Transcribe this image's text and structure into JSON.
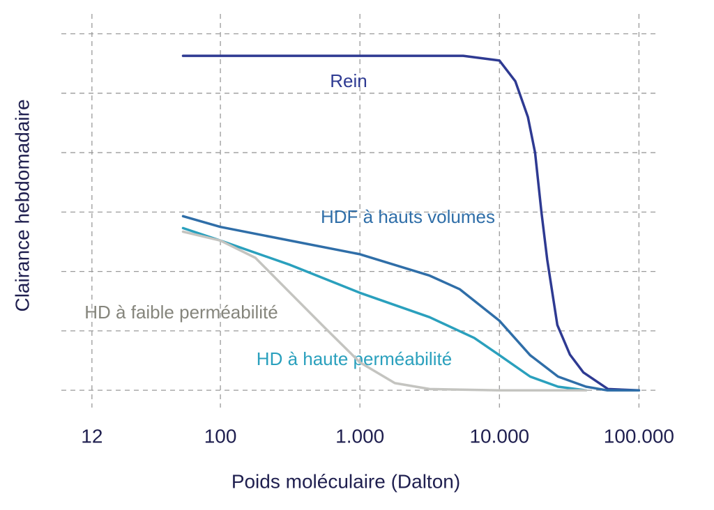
{
  "chart_data": {
    "type": "line",
    "x_label": "Poids moléculaire (Dalton)",
    "y_label": "Clairance hebdomadaire",
    "xscale": "log",
    "xlim": [
      7,
      175000
    ],
    "xticks": [
      12,
      100,
      {
        "value": 1000,
        "label": "1.000"
      },
      {
        "value": 10000,
        "label": "10.000"
      },
      {
        "value": 100000,
        "label": "100.000"
      }
    ],
    "ylim": [
      -0.35,
      6.1
    ],
    "ygrid": [
      0,
      1,
      2,
      3,
      4,
      5,
      6
    ],
    "grid": true,
    "series": [
      {
        "name": "Rein",
        "color": "#2e3a92",
        "x": [
          54,
          1000,
          5500,
          10000,
          13000,
          16000,
          18000,
          20000,
          22000,
          26000,
          32000,
          40000,
          60000,
          100000
        ],
        "values": [
          5.63,
          5.63,
          5.63,
          5.55,
          5.2,
          4.6,
          4.0,
          3.0,
          2.2,
          1.1,
          0.6,
          0.3,
          0.02,
          0
        ]
      },
      {
        "name": "HDF à hauts volumes",
        "color": "#2f6ea8",
        "x": [
          54,
          100,
          1000,
          3160,
          5200,
          10000,
          16600,
          26300,
          41700,
          59000,
          100000
        ],
        "values": [
          2.93,
          2.75,
          2.29,
          1.93,
          1.7,
          1.17,
          0.59,
          0.23,
          0.06,
          0,
          0
        ]
      },
      {
        "name": "HD à haute perméabilité",
        "color": "#2aa0bd",
        "x": [
          54,
          100,
          316,
          1000,
          3160,
          6600,
          10000,
          16600,
          26300,
          41700
        ],
        "values": [
          2.73,
          2.52,
          2.11,
          1.64,
          1.23,
          0.88,
          0.59,
          0.23,
          0.06,
          0
        ]
      },
      {
        "name": "HD à faible perméabilité",
        "color": "#c4c4c0",
        "label_color": "#85857c",
        "x": [
          54,
          100,
          178,
          316,
          562,
          1000,
          1780,
          3160,
          10000,
          41700
        ],
        "values": [
          2.67,
          2.52,
          2.23,
          1.64,
          1.05,
          0.47,
          0.12,
          0.02,
          0,
          0
        ]
      }
    ]
  }
}
